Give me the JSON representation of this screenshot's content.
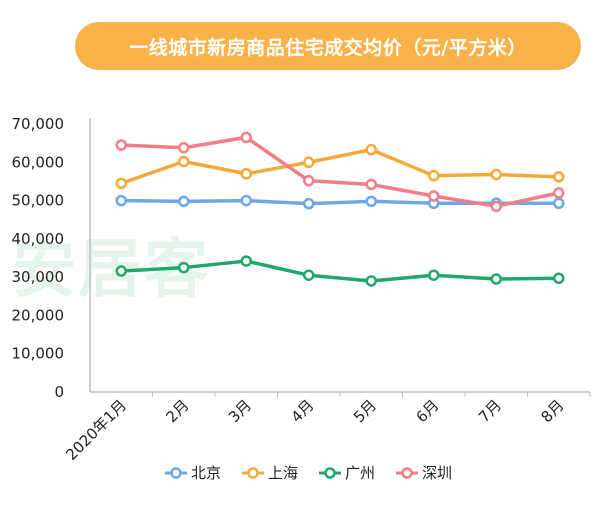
{
  "chart_data": {
    "type": "line",
    "title": "一线城市新房商品住宅成交均价（元/平方米）",
    "watermark": "安居客",
    "categories": [
      "2020年1月",
      "2月",
      "3月",
      "4月",
      "5月",
      "6月",
      "7月",
      "8月"
    ],
    "yticks": [
      "0",
      "10,000",
      "20,000",
      "30,000",
      "40,000",
      "50,000",
      "60,000",
      "70,000"
    ],
    "ylim": [
      0,
      70000
    ],
    "xlabel": "",
    "ylabel": "",
    "grid": false,
    "legend_position": "bottom",
    "series": [
      {
        "name": "北京",
        "color": "#6aa8e8",
        "values": [
          50000,
          49800,
          50000,
          49200,
          49800,
          49300,
          49300,
          49300
        ]
      },
      {
        "name": "上海",
        "color": "#f5a83a",
        "values": [
          54500,
          60200,
          57000,
          60000,
          63300,
          56500,
          56800,
          56200
        ]
      },
      {
        "name": "广州",
        "color": "#1fa86a",
        "values": [
          31600,
          32500,
          34200,
          30500,
          29000,
          30500,
          29500,
          29700
        ]
      },
      {
        "name": "深圳",
        "color": "#f37d86",
        "values": [
          64500,
          63800,
          66500,
          55200,
          54200,
          51200,
          48500,
          52000
        ]
      }
    ]
  }
}
